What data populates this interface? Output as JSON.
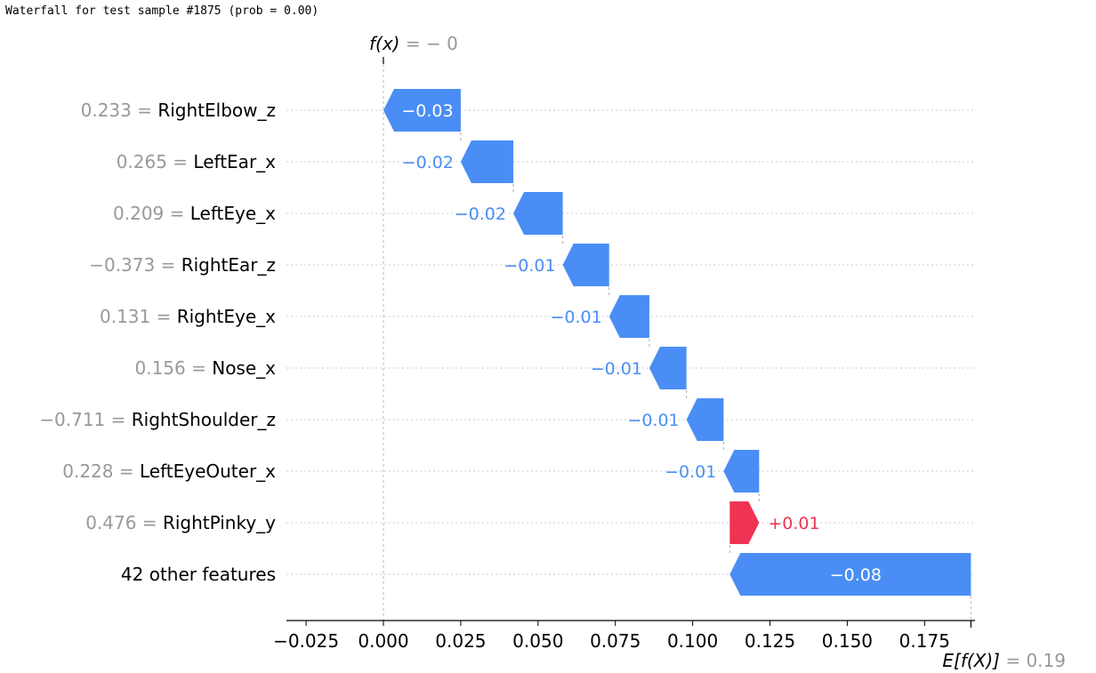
{
  "title": "Waterfall for test sample #1875 (prob = 0.00)",
  "chart_data": {
    "type": "bar",
    "subtype": "waterfall",
    "fx_label": "f(x)",
    "fx_value": "= − 0",
    "ex_label": "E[f(X)]",
    "ex_value": "= 0.19",
    "base_value": 0.19,
    "final_value": 0.0,
    "xlim": [
      -0.03,
      0.19
    ],
    "xticks": [
      -0.025,
      0.0,
      0.025,
      0.05,
      0.075,
      0.1,
      0.125,
      0.15,
      0.175
    ],
    "xtick_labels": [
      "−0.025",
      "0.000",
      "0.025",
      "0.050",
      "0.075",
      "0.100",
      "0.125",
      "0.150",
      "0.175"
    ],
    "grid": "horizontal dotted",
    "colors": {
      "negative": "#4a8ef5",
      "positive": "#ef3354",
      "muted": "#999999",
      "text": "#000000"
    },
    "features": [
      {
        "value_label": "0.233 =",
        "name": "RightElbow_z",
        "contribution": -0.025,
        "bar_label": "−0.03",
        "label_inside": true
      },
      {
        "value_label": "0.265 =",
        "name": "LeftEar_x",
        "contribution": -0.017,
        "bar_label": "−0.02",
        "label_inside": false
      },
      {
        "value_label": "0.209 =",
        "name": "LeftEye_x",
        "contribution": -0.016,
        "bar_label": "−0.02",
        "label_inside": false
      },
      {
        "value_label": "−0.373 =",
        "name": "RightEar_z",
        "contribution": -0.015,
        "bar_label": "−0.01",
        "label_inside": false
      },
      {
        "value_label": "0.131 =",
        "name": "RightEye_x",
        "contribution": -0.013,
        "bar_label": "−0.01",
        "label_inside": false
      },
      {
        "value_label": "0.156 =",
        "name": "Nose_x",
        "contribution": -0.012,
        "bar_label": "−0.01",
        "label_inside": false
      },
      {
        "value_label": "−0.711 =",
        "name": "RightShoulder_z",
        "contribution": -0.012,
        "bar_label": "−0.01",
        "label_inside": false
      },
      {
        "value_label": "0.228 =",
        "name": "LeftEyeOuter_x",
        "contribution": -0.0115,
        "bar_label": "−0.01",
        "label_inside": false
      },
      {
        "value_label": "0.476 =",
        "name": "RightPinky_y",
        "contribution": 0.0095,
        "bar_label": "+0.01",
        "label_inside": false
      },
      {
        "value_label": "",
        "name": "42 other features",
        "contribution": -0.078,
        "bar_label": "−0.08",
        "label_inside": true
      }
    ]
  }
}
